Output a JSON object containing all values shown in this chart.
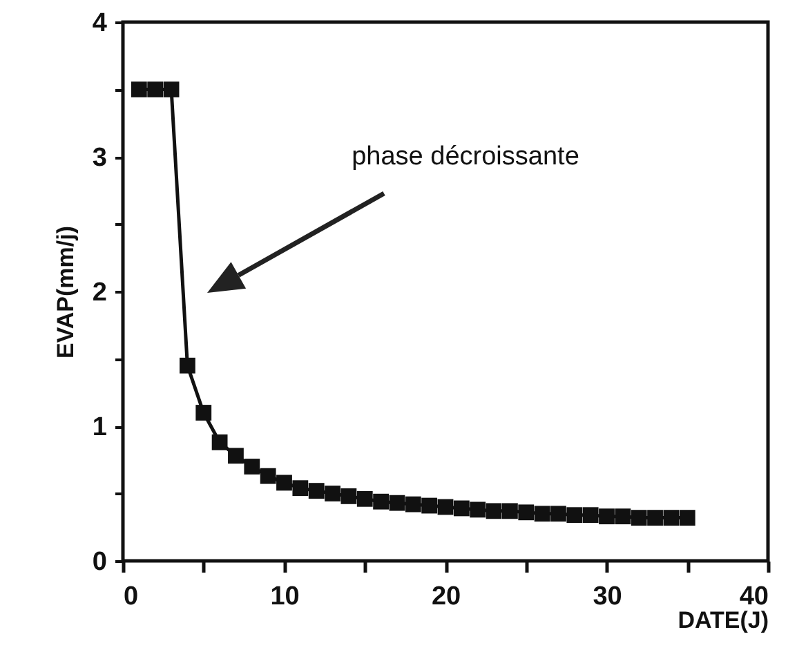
{
  "chart_data": {
    "type": "line",
    "xlabel": "DATE(J)",
    "ylabel": "EVAP(mm/j)",
    "x": [
      1,
      2,
      3,
      4,
      5,
      6,
      7,
      8,
      9,
      10,
      11,
      12,
      13,
      14,
      15,
      16,
      17,
      18,
      19,
      20,
      21,
      22,
      23,
      24,
      25,
      26,
      27,
      28,
      29,
      30,
      31,
      32,
      33,
      34,
      35
    ],
    "series": [
      {
        "color": "#111111",
        "values": [
          3.5,
          3.5,
          3.5,
          1.45,
          1.1,
          0.88,
          0.78,
          0.7,
          0.63,
          0.58,
          0.54,
          0.52,
          0.5,
          0.48,
          0.46,
          0.44,
          0.43,
          0.42,
          0.41,
          0.4,
          0.39,
          0.38,
          0.37,
          0.37,
          0.36,
          0.35,
          0.35,
          0.34,
          0.34,
          0.33,
          0.33,
          0.32,
          0.32,
          0.32,
          0.32
        ]
      }
    ],
    "xlim": [
      0,
      40
    ],
    "ylim": [
      0,
      4
    ],
    "xticks": [
      0,
      {
        "value": 5,
        "label": null
      },
      10,
      {
        "value": 15,
        "label": null
      },
      20,
      {
        "value": 25,
        "label": null
      },
      30,
      {
        "value": 35,
        "label": null
      },
      40
    ],
    "yticks": [
      0,
      {
        "value": 0.5,
        "label": null
      },
      1,
      {
        "value": 1.5,
        "label": null
      },
      2,
      {
        "value": 2.5,
        "label": null
      },
      3,
      {
        "value": 3.5,
        "label": null
      },
      4
    ],
    "marker": "square",
    "line_style": "solid",
    "grid": false,
    "annotations": [
      "phase décroissante"
    ]
  }
}
